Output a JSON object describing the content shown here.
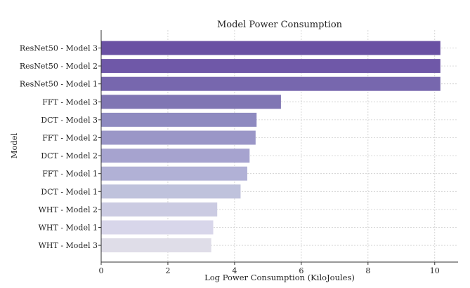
{
  "chart_data": {
    "type": "bar",
    "orientation": "horizontal",
    "title": "Model Power Consumption",
    "xlabel": "Log Power Consumption (KiloJoules)",
    "ylabel": "Model",
    "xlim": [
      0,
      10.7
    ],
    "xticks": [
      0,
      2,
      4,
      6,
      8,
      10
    ],
    "grid": true,
    "categories": [
      "ResNet50 - Model 3",
      "ResNet50 - Model 2",
      "ResNet50 - Model 1",
      "FFT - Model 3",
      "DCT - Model 3",
      "FFT - Model 2",
      "DCT - Model 2",
      "FFT - Model 1",
      "DCT - Model 1",
      "WHT - Model 2",
      "WHT - Model 1",
      "WHT - Model 3"
    ],
    "values": [
      10.17,
      10.17,
      10.17,
      5.39,
      4.66,
      4.63,
      4.45,
      4.38,
      4.18,
      3.48,
      3.36,
      3.3
    ],
    "colors": [
      "#6a51a3",
      "#6f58a8",
      "#7767ae",
      "#8076b3",
      "#8e8ac0",
      "#9a96c7",
      "#a6a3cf",
      "#b1b1d6",
      "#bfc2dc",
      "#cbcbe2",
      "#d8d6ea",
      "#dfdde8"
    ]
  }
}
